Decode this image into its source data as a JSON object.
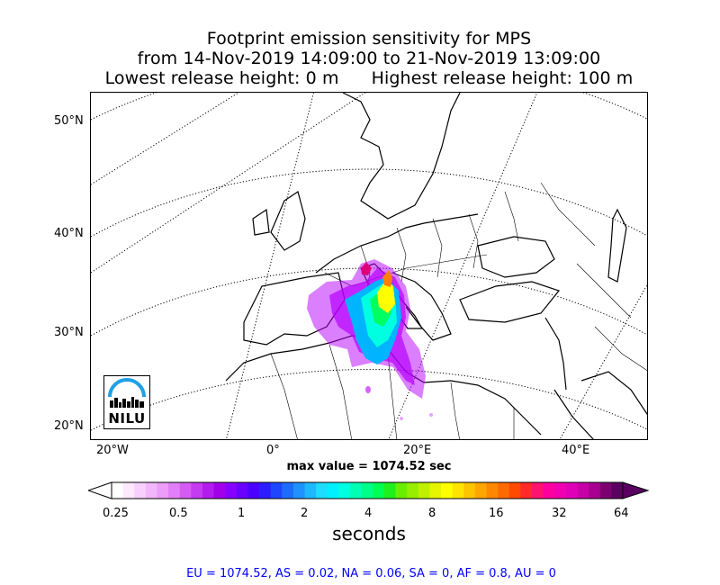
{
  "title": {
    "line1": "Footprint emission sensitivity for MPS",
    "line2": "from 14-Nov-2019 14:09:00 to 21-Nov-2019 13:09:00",
    "lowest_release": "Lowest release height: 0 m",
    "highest_release": "Highest release height: 100 m"
  },
  "map": {
    "lat_labels": [
      "50°N",
      "40°N",
      "30°N",
      "20°N"
    ],
    "lon_labels": [
      "20°W",
      "0°",
      "20°E",
      "40°E"
    ],
    "max_value_text": "max value = 1074.52 sec",
    "logo_text": "NILU",
    "plume_colors": [
      "#b800ff",
      "#00b4ff",
      "#00ffe0",
      "#00ff60",
      "#ffff00",
      "#ff8000",
      "#e0007a"
    ],
    "land_outline_color": "#000000",
    "graticule_style": "dotted"
  },
  "colorbar": {
    "tick_labels": [
      "0.25",
      "0.5",
      "1",
      "2",
      "4",
      "8",
      "16",
      "32",
      "64"
    ],
    "unit_label": "seconds",
    "colors": [
      "#ffffff",
      "#fde8fe",
      "#f8d0fd",
      "#f2b6fb",
      "#ec9cf9",
      "#e27ef7",
      "#d45cf4",
      "#c43bf1",
      "#b31cee",
      "#a200eb",
      "#8800ff",
      "#6a00ff",
      "#4b00ff",
      "#2d1cff",
      "#1e46ff",
      "#1e6cff",
      "#1e92ff",
      "#1eb8ff",
      "#1edcff",
      "#00f0ff",
      "#00ffe0",
      "#00ffb4",
      "#00ff88",
      "#00ff55",
      "#1ef01e",
      "#6aee00",
      "#96ee00",
      "#bff000",
      "#e6f500",
      "#ffff00",
      "#ffe400",
      "#ffc400",
      "#ffa600",
      "#ff8800",
      "#ff6a00",
      "#ff4a00",
      "#ff2a2a",
      "#ff1470",
      "#ff00a0",
      "#f000b0",
      "#e000b8",
      "#c800a8",
      "#a80090",
      "#7d0070",
      "#5a0060"
    ]
  },
  "summary": "EU = 1074.52,  AS = 0.02,  NA = 0.06,  SA = 0,  AF = 0.8,  AU = 0"
}
